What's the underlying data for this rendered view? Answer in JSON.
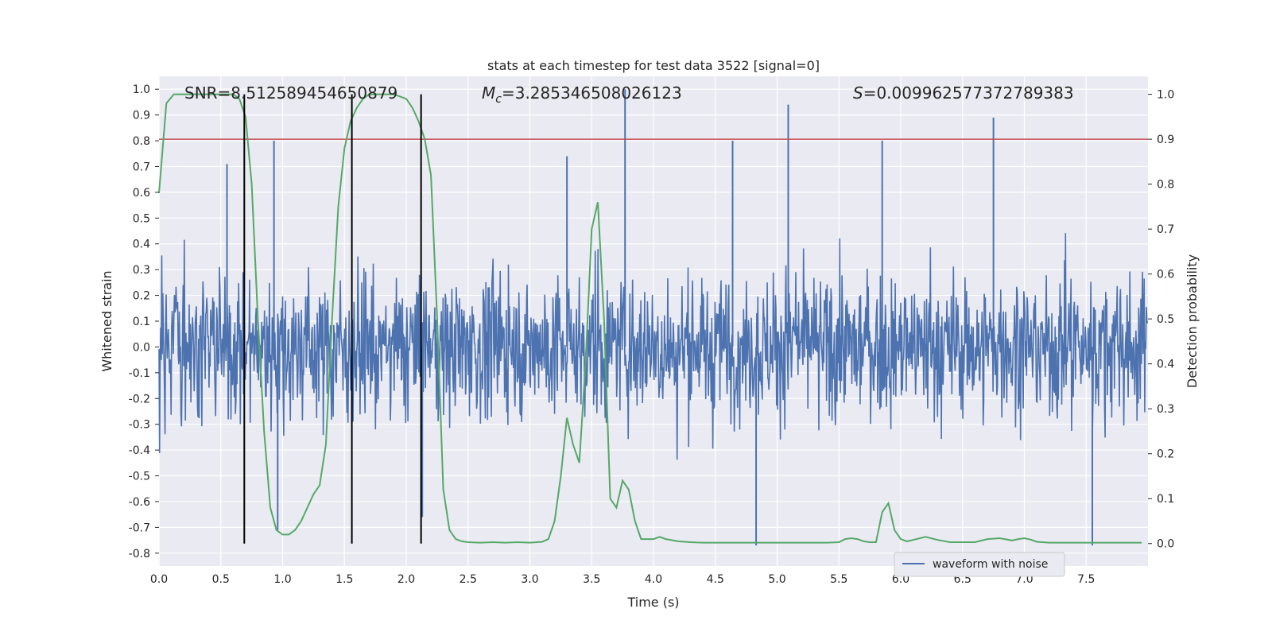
{
  "chart_data": {
    "type": "line",
    "title": "stats at each timestep for test data 3522 [signal=0]",
    "xlabel": "Time (s)",
    "ylabel": "Whitened strain",
    "ylabel_right": "Detection probability",
    "xlim": [
      0.0,
      8.0
    ],
    "ylim": [
      -0.85,
      1.05
    ],
    "ylim_right": [
      -0.05,
      1.04
    ],
    "x_ticks": [
      "0.0",
      "0.5",
      "1.0",
      "1.5",
      "2.0",
      "2.5",
      "3.0",
      "3.5",
      "4.0",
      "4.5",
      "5.0",
      "5.5",
      "6.0",
      "6.5",
      "7.0",
      "7.5"
    ],
    "y_ticks": [
      "1.0",
      "0.9",
      "0.8",
      "0.7",
      "0.6",
      "0.5",
      "0.4",
      "0.3",
      "0.2",
      "0.1",
      "0.0",
      "-0.1",
      "-0.2",
      "-0.3",
      "-0.4",
      "-0.5",
      "-0.6",
      "-0.7",
      "-0.8"
    ],
    "y_ticks_right": [
      "1.0",
      "0.9",
      "0.8",
      "0.7",
      "0.6",
      "0.5",
      "0.4",
      "0.3",
      "0.2",
      "0.1",
      "0.0"
    ],
    "annotations": {
      "snr": "SNR=8.512589454650879",
      "mc_prefix": "M",
      "mc_sub": "c",
      "mc_value": "=3.285346508026123",
      "s_prefix": "S",
      "s_value": "=0.009962577372789383"
    },
    "threshold": 0.9,
    "threshold_color": "#c44e52",
    "grid": true,
    "legend_placement": "lower right",
    "series": [
      {
        "name": "waveform with noise",
        "color": "#4c72b0",
        "kind": "noise",
        "typical_envelope": [
          -0.45,
          0.45
        ],
        "spikes": [
          {
            "x": 3.77,
            "y": 1.0
          },
          {
            "x": 5.09,
            "y": 0.94
          },
          {
            "x": 6.75,
            "y": 0.89
          },
          {
            "x": 0.93,
            "y": 0.8
          },
          {
            "x": 4.64,
            "y": 0.8
          },
          {
            "x": 5.85,
            "y": 0.8
          },
          {
            "x": 0.55,
            "y": 0.71
          },
          {
            "x": 3.3,
            "y": 0.74
          },
          {
            "x": 7.55,
            "y": -0.77
          },
          {
            "x": 4.83,
            "y": -0.77
          },
          {
            "x": 0.96,
            "y": -0.71
          },
          {
            "x": 2.13,
            "y": -0.66
          }
        ]
      },
      {
        "color": "#55a868",
        "axis": "right",
        "x": [
          0.0,
          0.06,
          0.12,
          0.2,
          0.3,
          0.4,
          0.5,
          0.6,
          0.65,
          0.7,
          0.75,
          0.8,
          0.85,
          0.9,
          0.95,
          1.0,
          1.05,
          1.1,
          1.15,
          1.2,
          1.25,
          1.3,
          1.35,
          1.4,
          1.45,
          1.5,
          1.55,
          1.6,
          1.65,
          1.7,
          1.8,
          1.9,
          2.0,
          2.05,
          2.1,
          2.15,
          2.2,
          2.25,
          2.3,
          2.35,
          2.4,
          2.45,
          2.5,
          2.6,
          2.7,
          2.8,
          2.9,
          3.0,
          3.1,
          3.15,
          3.2,
          3.25,
          3.3,
          3.35,
          3.4,
          3.45,
          3.5,
          3.55,
          3.6,
          3.65,
          3.7,
          3.75,
          3.8,
          3.85,
          3.9,
          3.95,
          4.0,
          4.05,
          4.1,
          4.2,
          4.3,
          4.4,
          4.5,
          4.6,
          4.7,
          4.8,
          4.9,
          5.0,
          5.1,
          5.2,
          5.3,
          5.4,
          5.5,
          5.55,
          5.6,
          5.65,
          5.7,
          5.75,
          5.8,
          5.85,
          5.9,
          5.95,
          6.0,
          6.05,
          6.1,
          6.2,
          6.3,
          6.4,
          6.5,
          6.6,
          6.7,
          6.8,
          6.9,
          6.95,
          7.0,
          7.05,
          7.1,
          7.2,
          7.3,
          7.4,
          7.5,
          7.6,
          7.7,
          7.8,
          7.95
        ],
        "values": [
          0.78,
          0.98,
          1.0,
          1.0,
          1.0,
          1.0,
          1.0,
          1.0,
          0.99,
          0.95,
          0.8,
          0.5,
          0.25,
          0.08,
          0.03,
          0.02,
          0.02,
          0.03,
          0.05,
          0.08,
          0.11,
          0.13,
          0.22,
          0.5,
          0.75,
          0.88,
          0.94,
          0.97,
          0.99,
          1.0,
          1.0,
          1.0,
          0.99,
          0.97,
          0.94,
          0.9,
          0.82,
          0.5,
          0.12,
          0.03,
          0.01,
          0.005,
          0.003,
          0.002,
          0.003,
          0.002,
          0.003,
          0.002,
          0.004,
          0.01,
          0.05,
          0.15,
          0.28,
          0.22,
          0.18,
          0.4,
          0.7,
          0.76,
          0.5,
          0.1,
          0.08,
          0.14,
          0.12,
          0.05,
          0.01,
          0.01,
          0.01,
          0.015,
          0.01,
          0.005,
          0.003,
          0.002,
          0.002,
          0.002,
          0.002,
          0.002,
          0.002,
          0.002,
          0.002,
          0.002,
          0.002,
          0.002,
          0.003,
          0.01,
          0.012,
          0.01,
          0.005,
          0.003,
          0.003,
          0.07,
          0.09,
          0.03,
          0.01,
          0.005,
          0.008,
          0.015,
          0.008,
          0.003,
          0.003,
          0.003,
          0.01,
          0.012,
          0.007,
          0.01,
          0.012,
          0.009,
          0.004,
          0.002,
          0.002,
          0.002,
          0.002,
          0.002,
          0.002,
          0.002,
          0.002
        ]
      }
    ],
    "vlines": [
      0.69,
      1.56,
      2.12
    ],
    "vline_color": "#000000"
  }
}
